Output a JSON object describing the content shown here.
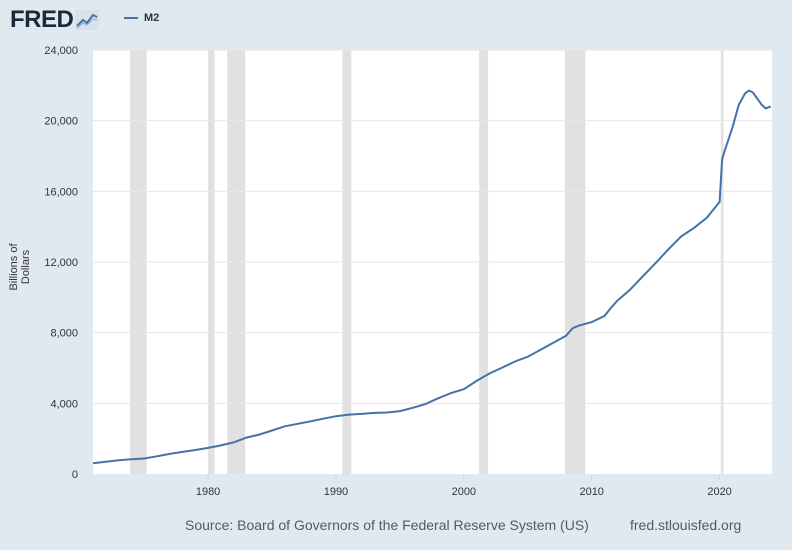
{
  "header": {
    "logo": "FRED",
    "legend_label": "M2"
  },
  "chart_data": {
    "type": "line",
    "title": "",
    "xlabel": "",
    "ylabel": "Billions of Dollars",
    "x_ticks": [
      "1980",
      "1990",
      "2000",
      "2010",
      "2020"
    ],
    "y_ticks": [
      "0",
      "4,000",
      "8,000",
      "12,000",
      "16,000",
      "20,000",
      "24,000"
    ],
    "ylim": [
      0,
      24000
    ],
    "xlim": [
      1971.0,
      2024.1
    ],
    "grid": true,
    "legend": "top-left",
    "series_color": "#4572a7",
    "recession_color": "#e1e1e1",
    "recessions": [
      [
        1973.9,
        1975.2
      ],
      [
        1980.0,
        1980.5
      ],
      [
        1981.5,
        1982.9
      ],
      [
        1990.5,
        1991.2
      ],
      [
        2001.2,
        2001.9
      ],
      [
        2007.9,
        2009.5
      ],
      [
        2020.1,
        2020.3
      ]
    ],
    "series": [
      {
        "name": "M2",
        "x": [
          1971.0,
          1972.0,
          1973.0,
          1974.0,
          1975.0,
          1976.0,
          1977.0,
          1978.0,
          1979.0,
          1980.0,
          1981.0,
          1982.0,
          1983.0,
          1984.0,
          1985.0,
          1986.0,
          1987.0,
          1988.0,
          1989.0,
          1990.0,
          1991.0,
          1992.0,
          1993.0,
          1994.0,
          1995.0,
          1996.0,
          1997.0,
          1998.0,
          1999.0,
          2000.0,
          2001.0,
          2002.0,
          2003.0,
          2004.0,
          2005.0,
          2006.0,
          2007.0,
          2008.0,
          2008.5,
          2009.0,
          2010.0,
          2011.0,
          2011.5,
          2012.0,
          2013.0,
          2014.0,
          2015.0,
          2016.0,
          2017.0,
          2018.0,
          2019.0,
          2020.0,
          2020.2,
          2020.4,
          2021.0,
          2021.5,
          2022.0,
          2022.3,
          2022.6,
          2023.0,
          2023.3,
          2023.6,
          2024.0
        ],
        "values": [
          610,
          690,
          780,
          830,
          880,
          1000,
          1140,
          1250,
          1360,
          1480,
          1620,
          1790,
          2060,
          2230,
          2460,
          2700,
          2840,
          2980,
          3130,
          3270,
          3360,
          3400,
          3460,
          3480,
          3560,
          3750,
          3960,
          4290,
          4580,
          4800,
          5270,
          5690,
          6020,
          6370,
          6640,
          7030,
          7430,
          7830,
          8250,
          8400,
          8600,
          8950,
          9400,
          9810,
          10440,
          11190,
          11940,
          12720,
          13450,
          13930,
          14500,
          15400,
          17800,
          18300,
          19600,
          20900,
          21550,
          21700,
          21600,
          21200,
          20900,
          20700,
          20800
        ]
      }
    ]
  },
  "footer": {
    "source": "Source: Board of Governors of the Federal Reserve System (US)",
    "url": "fred.stlouisfed.org"
  }
}
